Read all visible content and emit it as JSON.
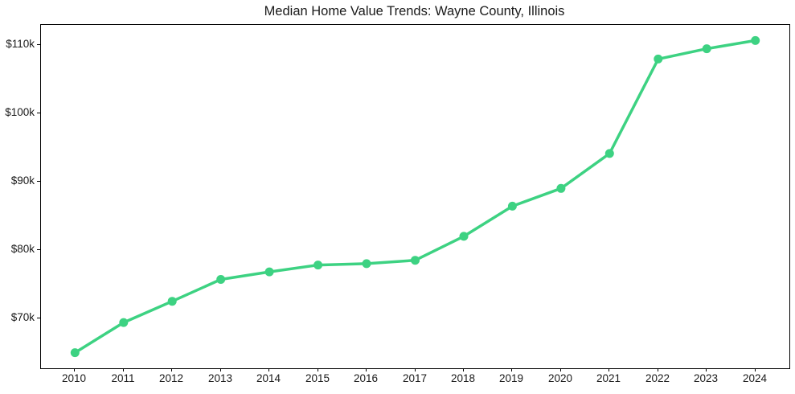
{
  "figure": {
    "background": "#ffffff"
  },
  "colors": {
    "line": "#3dd282",
    "marker": "#3dd282",
    "text": "#1a1a1a",
    "spine": "#000000"
  },
  "chart_data": {
    "type": "line",
    "title": "Median Home Value Trends: Wayne County, Illinois",
    "xlabel": "",
    "ylabel": "",
    "x": [
      2010,
      2011,
      2012,
      2013,
      2014,
      2015,
      2016,
      2017,
      2018,
      2019,
      2020,
      2021,
      2022,
      2023,
      2024
    ],
    "x_tick_labels": [
      "2010",
      "2011",
      "2012",
      "2013",
      "2014",
      "2015",
      "2016",
      "2017",
      "2018",
      "2019",
      "2020",
      "2021",
      "2022",
      "2023",
      "2024"
    ],
    "series": [
      {
        "name": "Median Home Value",
        "values": [
          65000,
          69400,
          72500,
          75700,
          76800,
          77800,
          78000,
          78500,
          82000,
          86400,
          89000,
          94100,
          107900,
          109400,
          110600
        ]
      }
    ],
    "y_ticks": [
      70000,
      80000,
      90000,
      100000,
      110000
    ],
    "y_tick_labels": [
      "$70k",
      "$80k",
      "$90k",
      "$100k",
      "$110k"
    ],
    "xlim": [
      2009.3,
      2024.7
    ],
    "ylim": [
      62720,
      112880
    ],
    "grid": false,
    "legend": "none",
    "marker": "circle",
    "line_color": "#3dd282",
    "marker_color": "#3dd282"
  }
}
